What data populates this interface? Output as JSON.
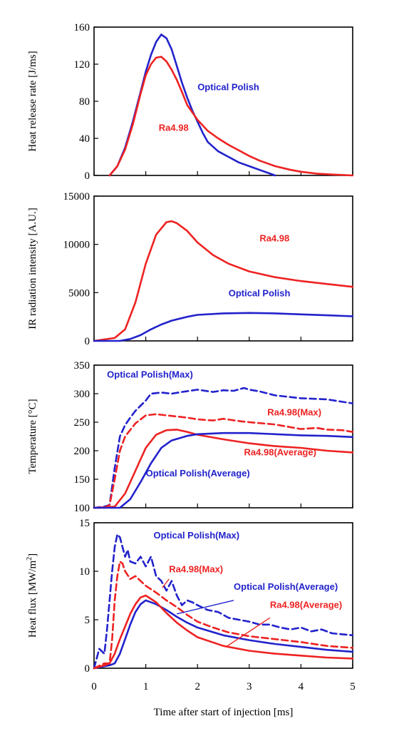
{
  "colors": {
    "blue": "#2222cc",
    "red": "#ee2222",
    "axis": "#000000"
  },
  "xlabel": "Time after start of injection [ms]",
  "chart_data": [
    {
      "type": "line",
      "ylabel": "Heat release rate [J/ms]",
      "xlim": [
        0,
        5
      ],
      "ylim": [
        0,
        160
      ],
      "yticks": [
        0,
        40,
        80,
        120,
        160
      ],
      "series": [
        {
          "name": "Optical Polish",
          "color": "#2222cc",
          "dash": false,
          "x": [
            0.3,
            0.45,
            0.6,
            0.75,
            0.9,
            1.0,
            1.1,
            1.2,
            1.3,
            1.4,
            1.5,
            1.6,
            1.7,
            1.8,
            1.9,
            2.0,
            2.1,
            2.2,
            2.4,
            2.6,
            2.8,
            3.0,
            3.2,
            3.4,
            3.5
          ],
          "y": [
            0,
            10,
            30,
            58,
            90,
            112,
            130,
            144,
            152,
            148,
            136,
            118,
            100,
            84,
            70,
            58,
            46,
            36,
            26,
            20,
            14,
            10,
            6,
            2,
            0
          ]
        },
        {
          "name": "Ra4.98",
          "color": "#ee2222",
          "dash": false,
          "x": [
            0.3,
            0.45,
            0.6,
            0.75,
            0.9,
            1.0,
            1.1,
            1.2,
            1.3,
            1.4,
            1.5,
            1.6,
            1.7,
            1.8,
            2.0,
            2.2,
            2.4,
            2.6,
            2.8,
            3.0,
            3.2,
            3.5,
            3.8,
            4.0,
            4.3,
            4.6,
            5.0
          ],
          "y": [
            0,
            10,
            28,
            55,
            88,
            108,
            120,
            127,
            128,
            123,
            114,
            103,
            90,
            76,
            60,
            48,
            40,
            33,
            27,
            21,
            16,
            10,
            6,
            4,
            2,
            1,
            0
          ]
        }
      ],
      "annotations": [
        {
          "text": "Optical Polish",
          "color": "#2222cc",
          "x": 2.0,
          "y": 92
        },
        {
          "text": "Ra4.98",
          "color": "#ee2222",
          "x": 1.25,
          "y": 48
        }
      ]
    },
    {
      "type": "line",
      "ylabel": "IR radiation intensity [A.U.]",
      "xlim": [
        0,
        5
      ],
      "ylim": [
        0,
        15000
      ],
      "yticks": [
        0,
        5000,
        10000,
        15000
      ],
      "series": [
        {
          "name": "Ra4.98",
          "color": "#ee2222",
          "dash": false,
          "x": [
            0,
            0.4,
            0.6,
            0.8,
            1.0,
            1.2,
            1.4,
            1.5,
            1.6,
            1.8,
            2.0,
            2.3,
            2.6,
            3.0,
            3.5,
            4.0,
            4.5,
            5.0
          ],
          "y": [
            0,
            300,
            1200,
            4000,
            8000,
            11000,
            12300,
            12400,
            12200,
            11400,
            10200,
            8900,
            8000,
            7200,
            6600,
            6200,
            5900,
            5600
          ]
        },
        {
          "name": "Optical Polish",
          "color": "#2222cc",
          "dash": false,
          "x": [
            0,
            0.5,
            0.7,
            0.9,
            1.1,
            1.3,
            1.5,
            1.8,
            2.0,
            2.5,
            3.0,
            3.5,
            4.0,
            4.5,
            5.0
          ],
          "y": [
            0,
            0,
            200,
            600,
            1200,
            1700,
            2100,
            2500,
            2700,
            2850,
            2900,
            2850,
            2750,
            2650,
            2550
          ]
        }
      ],
      "annotations": [
        {
          "text": "Ra4.98",
          "color": "#ee2222",
          "x": 3.2,
          "y": 10300
        },
        {
          "text": "Optical Polish",
          "color": "#2222cc",
          "x": 2.6,
          "y": 4600
        }
      ]
    },
    {
      "type": "line",
      "ylabel": "Temperature [°C]",
      "xlim": [
        0,
        5
      ],
      "ylim": [
        100,
        350
      ],
      "yticks": [
        100,
        150,
        200,
        250,
        300,
        350
      ],
      "series": [
        {
          "name": "Optical Polish(Max)",
          "color": "#2222cc",
          "dash": true,
          "x": [
            0,
            0.2,
            0.3,
            0.4,
            0.5,
            0.6,
            0.7,
            0.8,
            1.0,
            1.1,
            1.3,
            1.5,
            1.7,
            2.0,
            2.3,
            2.5,
            2.7,
            2.9,
            3.0,
            3.2,
            3.5,
            4.0,
            4.5,
            5.0
          ],
          "y": [
            100,
            102,
            105,
            170,
            225,
            245,
            258,
            270,
            288,
            300,
            302,
            300,
            303,
            307,
            303,
            306,
            305,
            310,
            307,
            304,
            297,
            292,
            290,
            283
          ]
        },
        {
          "name": "Ra4.98(Max)",
          "color": "#ee2222",
          "dash": true,
          "x": [
            0,
            0.2,
            0.3,
            0.4,
            0.5,
            0.6,
            0.8,
            1.0,
            1.2,
            1.5,
            1.8,
            2.0,
            2.3,
            2.5,
            2.8,
            3.0,
            3.5,
            4.0,
            4.3,
            4.5,
            4.8,
            5.0
          ],
          "y": [
            100,
            100,
            105,
            150,
            200,
            225,
            248,
            262,
            264,
            261,
            258,
            255,
            253,
            256,
            252,
            250,
            246,
            238,
            240,
            237,
            236,
            233
          ]
        },
        {
          "name": "Ra4.98(Average)",
          "color": "#ee2222",
          "dash": false,
          "x": [
            0,
            0.4,
            0.6,
            0.8,
            1.0,
            1.2,
            1.4,
            1.6,
            1.8,
            2.0,
            2.5,
            3.0,
            3.5,
            4.0,
            4.5,
            5.0
          ],
          "y": [
            100,
            102,
            125,
            165,
            205,
            228,
            236,
            237,
            233,
            228,
            220,
            213,
            208,
            205,
            200,
            197
          ]
        },
        {
          "name": "Optical Polish(Average)",
          "color": "#2222cc",
          "dash": false,
          "x": [
            0,
            0.5,
            0.7,
            0.9,
            1.1,
            1.3,
            1.5,
            1.8,
            2.0,
            2.5,
            3.0,
            3.5,
            4.0,
            4.5,
            5.0
          ],
          "y": [
            100,
            100,
            115,
            145,
            178,
            205,
            218,
            226,
            229,
            231,
            231,
            229,
            227,
            226,
            224
          ]
        }
      ],
      "annotations": [
        {
          "text": "Optical Polish(Max)",
          "color": "#2222cc",
          "x": 0.25,
          "y": 328
        },
        {
          "text": "Ra4.98(Max)",
          "color": "#ee2222",
          "x": 3.35,
          "y": 262
        },
        {
          "text": "Ra4.98(Average)",
          "color": "#ee2222",
          "x": 2.9,
          "y": 192
        },
        {
          "text": "Optical Polish(Average)",
          "color": "#2222cc",
          "x": 1.0,
          "y": 155
        }
      ]
    },
    {
      "type": "line",
      "ylabel": "Heat flux [MW/m²]",
      "ylabel_main": "Heat flux [MW/m",
      "ylabel_sup": "2",
      "ylabel_end": "]",
      "xlim": [
        0,
        5
      ],
      "ylim": [
        0,
        15
      ],
      "yticks": [
        0,
        5,
        10,
        15
      ],
      "xticks": [
        0,
        1,
        2,
        3,
        4,
        5
      ],
      "series": [
        {
          "name": "Optical Polish(Max)",
          "color": "#2222cc",
          "dash": true,
          "x": [
            0,
            0.1,
            0.2,
            0.25,
            0.3,
            0.35,
            0.4,
            0.45,
            0.5,
            0.55,
            0.6,
            0.65,
            0.7,
            0.8,
            0.9,
            1.0,
            1.1,
            1.2,
            1.3,
            1.4,
            1.5,
            1.6,
            1.7,
            1.8,
            1.9,
            2.0,
            2.2,
            2.4,
            2.6,
            2.8,
            3.0,
            3.2,
            3.4,
            3.6,
            3.8,
            4.0,
            4.2,
            4.4,
            4.6,
            4.8,
            5.0
          ],
          "y": [
            0,
            2,
            1.5,
            4,
            7,
            10,
            12.5,
            13.8,
            13.5,
            12.5,
            11.5,
            12.2,
            11,
            10.8,
            11.5,
            10.5,
            11.5,
            9.5,
            9,
            8,
            9,
            7.5,
            6.5,
            7,
            6.8,
            6.5,
            6,
            5.8,
            5.2,
            5,
            4.8,
            4.5,
            4.5,
            4.2,
            4,
            4.2,
            3.8,
            4,
            3.6,
            3.5,
            3.4
          ]
        },
        {
          "name": "Ra4.98(Max)",
          "color": "#ee2222",
          "dash": true,
          "x": [
            0,
            0.2,
            0.3,
            0.35,
            0.4,
            0.45,
            0.5,
            0.55,
            0.6,
            0.7,
            0.8,
            0.9,
            1.0,
            1.2,
            1.4,
            1.6,
            1.8,
            2.0,
            2.3,
            2.6,
            3.0,
            3.5,
            4.0,
            4.5,
            5.0
          ],
          "y": [
            0,
            0.5,
            0.5,
            3,
            7,
            9.5,
            11,
            10.8,
            10,
            9.2,
            9.5,
            9,
            8.5,
            7.8,
            7,
            6.3,
            5.5,
            4.8,
            4.2,
            3.7,
            3.3,
            3,
            2.7,
            2.3,
            2.1
          ]
        },
        {
          "name": "Optical Polish(Average)",
          "color": "#2222cc",
          "dash": false,
          "x": [
            0,
            0.3,
            0.4,
            0.5,
            0.6,
            0.7,
            0.8,
            0.9,
            1.0,
            1.2,
            1.4,
            1.6,
            1.8,
            2.0,
            2.5,
            3.0,
            3.5,
            4.0,
            4.5,
            5.0
          ],
          "y": [
            0,
            0.3,
            0.5,
            1.5,
            3,
            4.5,
            5.8,
            6.6,
            7,
            6.6,
            6,
            5.3,
            4.7,
            4.2,
            3.4,
            2.9,
            2.5,
            2.2,
            1.9,
            1.7
          ]
        },
        {
          "name": "Ra4.98(Average)",
          "color": "#ee2222",
          "dash": false,
          "x": [
            0,
            0.2,
            0.3,
            0.4,
            0.5,
            0.6,
            0.7,
            0.8,
            0.9,
            1.0,
            1.2,
            1.4,
            1.6,
            1.8,
            2.0,
            2.5,
            3.0,
            3.5,
            4.0,
            4.5,
            5.0
          ],
          "y": [
            0,
            0.3,
            0.5,
            1.5,
            3,
            4.3,
            5.6,
            6.6,
            7.3,
            7.5,
            6.8,
            5.7,
            4.7,
            3.9,
            3.2,
            2.3,
            1.8,
            1.5,
            1.3,
            1.1,
            1.0
          ]
        }
      ],
      "annotations": [
        {
          "text": "Optical Polish(Max)",
          "color": "#2222cc",
          "x": 1.15,
          "y": 13.4,
          "line": null
        },
        {
          "text": "Ra4.98(Max)",
          "color": "#ee2222",
          "x": 1.45,
          "y": 9.9,
          "line": [
            [
              1.45,
              9.2
            ],
            [
              1.32,
              8.3
            ]
          ]
        },
        {
          "text": "Optical Polish(Average)",
          "color": "#2222cc",
          "x": 2.7,
          "y": 8.1,
          "line": [
            [
              2.7,
              7.0
            ],
            [
              1.6,
              5.6
            ]
          ]
        },
        {
          "text": "Ra4.98(Average)",
          "color": "#ee2222",
          "x": 3.4,
          "y": 6.2,
          "line": [
            [
              3.4,
              5.2
            ],
            [
              2.55,
              2.2
            ]
          ]
        }
      ]
    }
  ]
}
